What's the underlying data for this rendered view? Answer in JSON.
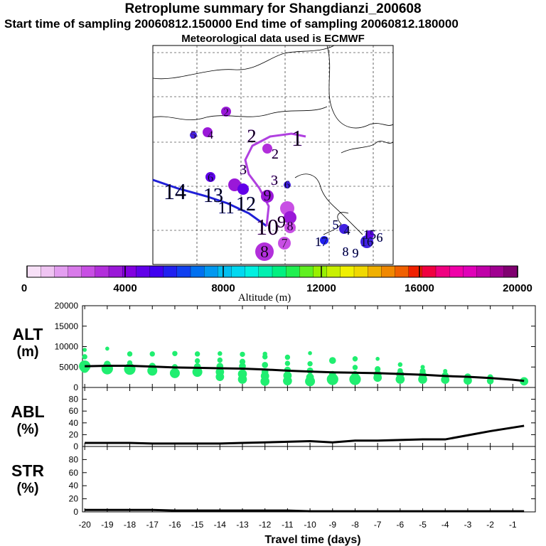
{
  "header": {
    "title": "Retroplume summary for Shangdianzi_200608",
    "sampling": "Start time of sampling 20060812.150000     End time of sampling 20060812.180000",
    "met": "Meteorological data used is ECMWF"
  },
  "colorbar": {
    "label": "Altitude (m)",
    "ticks": [
      "0",
      "4000",
      "8000",
      "12000",
      "16000",
      "20000"
    ],
    "colors": [
      "#f7e0f7",
      "#efc4f2",
      "#e39ef0",
      "#d87ae9",
      "#c84fe4",
      "#b22fdb",
      "#9a18d8",
      "#8200e0",
      "#6100e8",
      "#4000f0",
      "#2020f0",
      "#1040f0",
      "#0070f0",
      "#0098f0",
      "#00bff0",
      "#00d8f0",
      "#00f0e0",
      "#00f0b0",
      "#00f080",
      "#20f050",
      "#60f020",
      "#98f000",
      "#c8f000",
      "#f0f000",
      "#f0d800",
      "#f0b000",
      "#f08800",
      "#f06000",
      "#f02000",
      "#f00040",
      "#f00080",
      "#f000a8",
      "#e000b8",
      "#c000a8",
      "#a00090",
      "#800070"
    ]
  },
  "map": {
    "labels": [
      {
        "t": "1",
        "c": "#8a20d8"
      },
      {
        "t": "2",
        "c": "#8a20d8"
      },
      {
        "t": "2",
        "c": "#8a20d8"
      },
      {
        "t": "2",
        "c": "#8a20d8"
      },
      {
        "t": "3",
        "c": "#8a20d8"
      },
      {
        "t": "3",
        "c": "#8a20d8"
      },
      {
        "t": "4",
        "c": "#8a20d8"
      },
      {
        "t": "5",
        "c": "#8a20d8"
      },
      {
        "t": "6",
        "c": "#4020e0"
      },
      {
        "t": "6",
        "c": "#4020e0"
      },
      {
        "t": "9",
        "c": "#8a20d8"
      },
      {
        "t": "14",
        "c": "#3030e0"
      },
      {
        "t": "13",
        "c": "#3030e0"
      },
      {
        "t": "12",
        "c": "#3030e0"
      },
      {
        "t": "11",
        "c": "#3030e0"
      },
      {
        "t": "10",
        "c": "#9a18d8"
      },
      {
        "t": "9",
        "c": "#9a18d8"
      },
      {
        "t": "8",
        "c": "#9a18d8"
      },
      {
        "t": "7",
        "c": "#c84fe4"
      },
      {
        "t": "8",
        "c": "#b22fdb"
      },
      {
        "t": "5",
        "c": "#3030e0"
      },
      {
        "t": "4",
        "c": "#3030e0"
      },
      {
        "t": "17",
        "c": "#3030e0"
      },
      {
        "t": "8",
        "c": "#3030e0"
      },
      {
        "t": "9",
        "c": "#3030e0"
      },
      {
        "t": "16",
        "c": "#3030e0"
      },
      {
        "t": "15",
        "c": "#3030e0"
      },
      {
        "t": "6",
        "c": "#3030e0"
      }
    ]
  },
  "chart_data": [
    {
      "type": "scatter",
      "title": "ALT (m)",
      "ylabel": "ALT (m)",
      "yticks": [
        "0",
        "5000",
        "10000",
        "15000",
        "20000"
      ],
      "ylim": [
        0,
        20000
      ],
      "xlim": [
        -20,
        0
      ],
      "color": "#20ee70",
      "line": {
        "x": [
          -20,
          -19,
          -18,
          -17,
          -16,
          -15,
          -14,
          -13,
          -12,
          -11,
          -10,
          -9,
          -8,
          -7,
          -6,
          -5,
          -4,
          -3,
          -2,
          -1,
          -0.5
        ],
        "y": [
          5200,
          5300,
          5300,
          5100,
          4900,
          4800,
          4700,
          4600,
          4400,
          4100,
          3900,
          3700,
          3600,
          3500,
          3300,
          3100,
          2800,
          2600,
          2300,
          1900,
          1600
        ]
      },
      "points": [
        {
          "x": -20,
          "y": 5200,
          "s": 3
        },
        {
          "x": -20,
          "y": 4600,
          "s": 2
        },
        {
          "x": -20,
          "y": 7500,
          "s": 1
        },
        {
          "x": -20,
          "y": 9200,
          "s": 0.6
        },
        {
          "x": -19,
          "y": 4600,
          "s": 3
        },
        {
          "x": -19,
          "y": 5700,
          "s": 1.5
        },
        {
          "x": -19,
          "y": 9500,
          "s": 0.6
        },
        {
          "x": -18,
          "y": 4500,
          "s": 3
        },
        {
          "x": -18,
          "y": 6000,
          "s": 1
        },
        {
          "x": -18,
          "y": 8200,
          "s": 1
        },
        {
          "x": -17,
          "y": 4100,
          "s": 2.5
        },
        {
          "x": -17,
          "y": 5200,
          "s": 1.5
        },
        {
          "x": -17,
          "y": 8200,
          "s": 1
        },
        {
          "x": -16,
          "y": 3500,
          "s": 2.5
        },
        {
          "x": -16,
          "y": 5000,
          "s": 1.2
        },
        {
          "x": -16,
          "y": 8300,
          "s": 1
        },
        {
          "x": -15,
          "y": 3800,
          "s": 2.5
        },
        {
          "x": -15,
          "y": 5100,
          "s": 1.5
        },
        {
          "x": -15,
          "y": 6500,
          "s": 1
        },
        {
          "x": -15,
          "y": 8200,
          "s": 1
        },
        {
          "x": -14,
          "y": 2600,
          "s": 2
        },
        {
          "x": -14,
          "y": 3800,
          "s": 2
        },
        {
          "x": -14,
          "y": 5200,
          "s": 1.5
        },
        {
          "x": -14,
          "y": 6700,
          "s": 1
        },
        {
          "x": -14,
          "y": 8300,
          "s": 0.8
        },
        {
          "x": -13,
          "y": 2000,
          "s": 2.2
        },
        {
          "x": -13,
          "y": 3300,
          "s": 2.2
        },
        {
          "x": -13,
          "y": 5200,
          "s": 1.5
        },
        {
          "x": -13,
          "y": 6300,
          "s": 1.2
        },
        {
          "x": -13,
          "y": 8100,
          "s": 1
        },
        {
          "x": -12,
          "y": 1500,
          "s": 2.2
        },
        {
          "x": -12,
          "y": 2800,
          "s": 2
        },
        {
          "x": -12,
          "y": 3800,
          "s": 1.5
        },
        {
          "x": -12,
          "y": 5500,
          "s": 1.3
        },
        {
          "x": -12,
          "y": 7500,
          "s": 1
        },
        {
          "x": -12,
          "y": 8200,
          "s": 0.8
        },
        {
          "x": -11,
          "y": 1600,
          "s": 2.2
        },
        {
          "x": -11,
          "y": 2900,
          "s": 2
        },
        {
          "x": -11,
          "y": 4300,
          "s": 1.4
        },
        {
          "x": -11,
          "y": 5900,
          "s": 1
        },
        {
          "x": -11,
          "y": 7400,
          "s": 1
        },
        {
          "x": -10,
          "y": 1500,
          "s": 2.5
        },
        {
          "x": -10,
          "y": 2500,
          "s": 1.8
        },
        {
          "x": -10,
          "y": 4100,
          "s": 1.4
        },
        {
          "x": -10,
          "y": 5800,
          "s": 1
        },
        {
          "x": -10,
          "y": 8400,
          "s": 0.6
        },
        {
          "x": -9,
          "y": 2000,
          "s": 3
        },
        {
          "x": -9,
          "y": 3200,
          "s": 1.5
        },
        {
          "x": -9,
          "y": 6600,
          "s": 1.5
        },
        {
          "x": -8,
          "y": 2000,
          "s": 3
        },
        {
          "x": -8,
          "y": 3200,
          "s": 1.5
        },
        {
          "x": -8,
          "y": 4900,
          "s": 1
        },
        {
          "x": -8,
          "y": 7000,
          "s": 1
        },
        {
          "x": -7,
          "y": 2400,
          "s": 2
        },
        {
          "x": -7,
          "y": 3200,
          "s": 1.8
        },
        {
          "x": -7,
          "y": 4500,
          "s": 1.2
        },
        {
          "x": -7,
          "y": 7000,
          "s": 0.6
        },
        {
          "x": -6,
          "y": 2000,
          "s": 2.2
        },
        {
          "x": -6,
          "y": 3200,
          "s": 1.8
        },
        {
          "x": -6,
          "y": 4100,
          "s": 1
        },
        {
          "x": -6,
          "y": 5600,
          "s": 0.8
        },
        {
          "x": -5,
          "y": 2000,
          "s": 2.2
        },
        {
          "x": -5,
          "y": 3000,
          "s": 1.8
        },
        {
          "x": -5,
          "y": 4000,
          "s": 1.2
        },
        {
          "x": -5,
          "y": 5000,
          "s": 0.7
        },
        {
          "x": -4,
          "y": 1900,
          "s": 2
        },
        {
          "x": -4,
          "y": 3000,
          "s": 1.4
        },
        {
          "x": -4,
          "y": 4000,
          "s": 0.7
        },
        {
          "x": -3,
          "y": 1700,
          "s": 2
        },
        {
          "x": -3,
          "y": 2600,
          "s": 1.5
        },
        {
          "x": -2,
          "y": 1600,
          "s": 1.5
        },
        {
          "x": -2,
          "y": 2500,
          "s": 1.2
        },
        {
          "x": -0.5,
          "y": 1500,
          "s": 2
        }
      ]
    },
    {
      "type": "line",
      "title": "ABL (%)",
      "ylabel": "ABL (%)",
      "yticks": [
        "0",
        "20",
        "40",
        "60",
        "80"
      ],
      "ylim": [
        0,
        100
      ],
      "xlim": [
        -20,
        0
      ],
      "x": [
        -20,
        -19,
        -18,
        -17,
        -16,
        -15,
        -14,
        -13,
        -12,
        -11,
        -10,
        -9,
        -8,
        -7,
        -6,
        -5,
        -4,
        -3,
        -2,
        -1,
        -0.5
      ],
      "y": [
        6,
        6,
        6,
        5,
        5,
        5,
        5,
        6,
        7,
        8,
        9,
        7,
        10,
        10,
        11,
        12,
        12,
        19,
        26,
        32,
        35
      ]
    },
    {
      "type": "line",
      "title": "STR (%)",
      "ylabel": "STR (%)",
      "yticks": [
        "0",
        "20",
        "40",
        "60",
        "80"
      ],
      "ylim": [
        0,
        100
      ],
      "xlim": [
        -20,
        0
      ],
      "x": [
        -20,
        -19,
        -18,
        -17,
        -16,
        -15,
        -14,
        -13,
        -12,
        -11,
        -10,
        -9,
        -8,
        -7,
        -6,
        -5,
        -4,
        -3,
        -2,
        -1,
        -0.5
      ],
      "y": [
        3,
        3,
        3,
        3,
        2,
        2,
        2,
        2,
        2,
        2,
        1,
        1,
        1,
        1,
        1,
        1,
        1,
        1,
        1,
        1,
        1
      ],
      "xticks": [
        "-20",
        "-19",
        "-18",
        "-17",
        "-16",
        "-15",
        "-14",
        "-13",
        "-12",
        "-11",
        "-10",
        "-9",
        "-8",
        "-7",
        "-6",
        "-5",
        "-4",
        "-3",
        "-2",
        "-1"
      ],
      "xlabel": "Travel time (days)"
    }
  ]
}
